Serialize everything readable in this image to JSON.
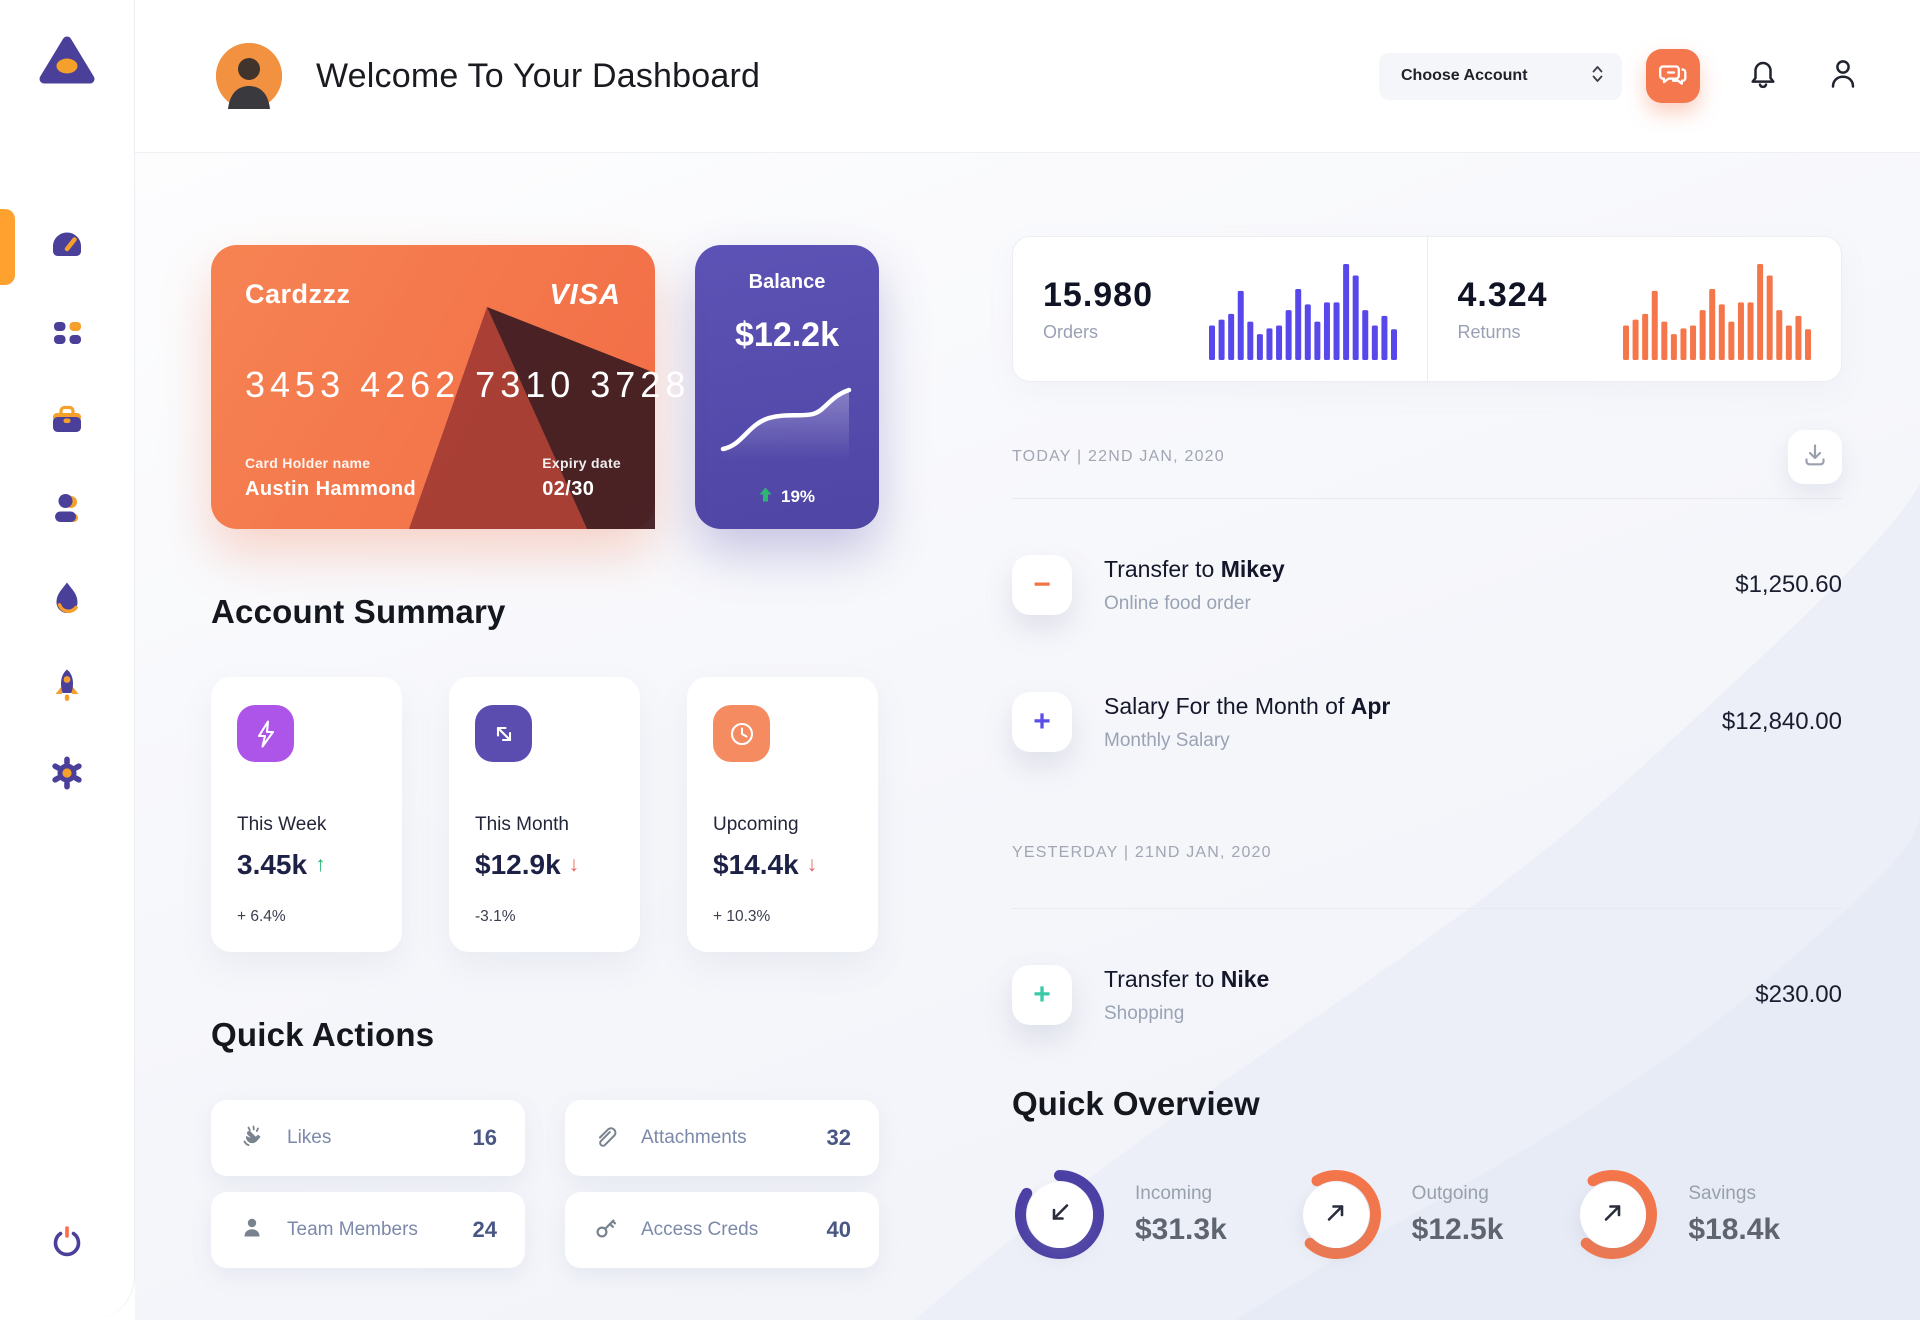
{
  "header": {
    "title": "Welcome To Your Dashboard",
    "account_select_label": "Choose Account"
  },
  "sidebar": {
    "items": [
      {
        "icon": "gauge-icon",
        "active": true
      },
      {
        "icon": "grid-icon",
        "active": false
      },
      {
        "icon": "briefcase-icon",
        "active": false
      },
      {
        "icon": "user-icon",
        "active": false
      },
      {
        "icon": "flame-icon",
        "active": false
      },
      {
        "icon": "rocket-icon",
        "active": false
      },
      {
        "icon": "gear-icon",
        "active": false
      }
    ],
    "logout_icon": "power-icon"
  },
  "credit_card": {
    "name": "Cardzzz",
    "brand": "VISA",
    "number": "3453 4262 7310 3728",
    "holder_label": "Card Holder name",
    "holder": "Austin Hammond",
    "expiry_label": "Expiry date",
    "expiry": "02/30",
    "bg": "#F2714B"
  },
  "balance_card": {
    "label": "Balance",
    "value": "$12.2k",
    "change": "19%",
    "direction": "up",
    "bg": "#564CA8",
    "change_color": "#2BB673"
  },
  "account_summary": {
    "title": "Account Summary",
    "cards": [
      {
        "icon": "lightning-icon",
        "icon_bg": "#AE55E9",
        "label": "This Week",
        "value": "3.45k",
        "arrow": "↑",
        "arrow_color": "#2BB673",
        "change": "+ 6.4%"
      },
      {
        "icon": "trend-arrow-icon",
        "icon_bg": "#5B4DB0",
        "label": "This Month",
        "value": "$12.9k",
        "arrow": "↓",
        "arrow_color": "#E5625C",
        "change": "-3.1%"
      },
      {
        "icon": "clock-icon",
        "icon_bg": "#F48B61",
        "label": "Upcoming",
        "value": "$14.4k",
        "arrow": "↓",
        "arrow_color": "#E5625C",
        "change": "+ 10.3%"
      }
    ]
  },
  "quick_actions": {
    "title": "Quick Actions",
    "items": [
      {
        "icon": "clap-icon",
        "label": "Likes",
        "count": "16"
      },
      {
        "icon": "paperclip-icon",
        "label": "Attachments",
        "count": "32"
      },
      {
        "icon": "member-icon",
        "label": "Team Members",
        "count": "24"
      },
      {
        "icon": "key-icon",
        "label": "Access Creds",
        "count": "40"
      }
    ]
  },
  "stats": {
    "orders": {
      "value": "15.980",
      "label": "Orders",
      "color": "#5848EC",
      "bars": [
        36,
        42,
        48,
        72,
        40,
        27,
        33,
        36,
        52,
        74,
        58,
        40,
        60,
        60,
        100,
        88,
        52,
        36,
        46,
        32
      ]
    },
    "returns": {
      "value": "4.324",
      "label": "Returns",
      "color": "#F4764A",
      "bars": [
        36,
        42,
        48,
        72,
        40,
        27,
        33,
        36,
        52,
        74,
        58,
        40,
        60,
        60,
        100,
        88,
        52,
        36,
        46,
        32
      ]
    }
  },
  "transactions": {
    "groups": [
      {
        "header": "TODAY | 22ND JAN, 2020",
        "rows": [
          {
            "sign": "−",
            "sign_color": "#F0764A",
            "title_prefix": "Transfer to ",
            "title_bold": "Mikey",
            "subtitle": "Online food order",
            "amount": "$1,250.60"
          },
          {
            "sign": "+",
            "sign_color": "#5B4FE9",
            "title_prefix": "Salary For the Month of ",
            "title_bold": "Apr",
            "subtitle": "Monthly Salary",
            "amount": "$12,840.00"
          }
        ]
      },
      {
        "header": "YESTERDAY | 21ND JAN, 2020",
        "rows": [
          {
            "sign": "+",
            "sign_color": "#3BC9A8",
            "title_prefix": "Transfer to ",
            "title_bold": "Nike",
            "subtitle": "Shopping",
            "amount": "$230.00"
          }
        ]
      }
    ]
  },
  "quick_overview": {
    "title": "Quick Overview",
    "items": [
      {
        "label": "Incoming",
        "value": "$31.3k",
        "percent": 84,
        "start_deg": 0,
        "color": "#4C3FA5",
        "arrow": "down-left"
      },
      {
        "label": "Outgoing",
        "value": "$12.5k",
        "percent": 70,
        "start_deg": -30,
        "color": "#F4764A",
        "arrow": "up-right"
      },
      {
        "label": "Savings",
        "value": "$18.4k",
        "percent": 70,
        "start_deg": -30,
        "color": "#F4764A",
        "arrow": "up-right"
      }
    ]
  }
}
